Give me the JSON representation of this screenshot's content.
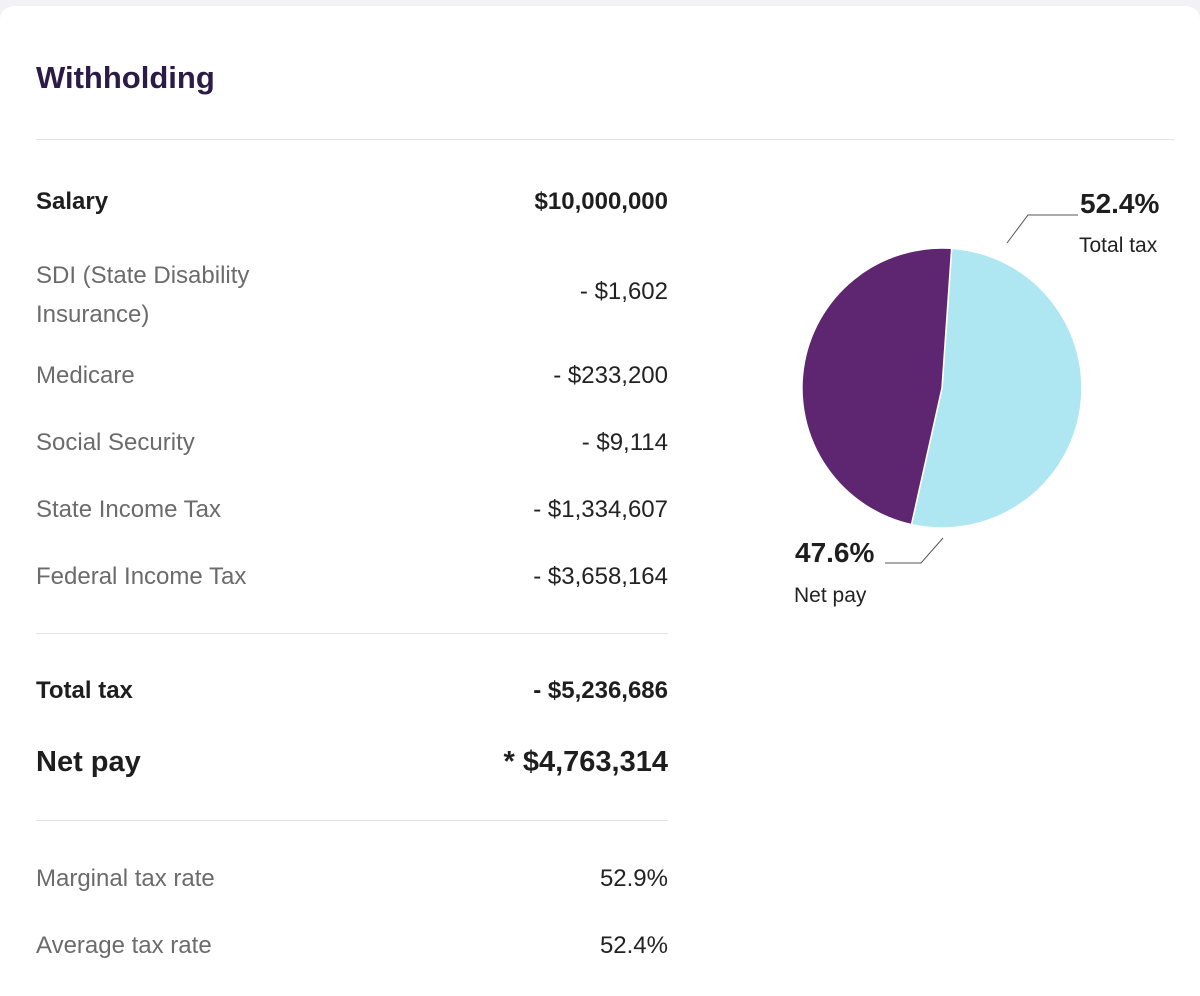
{
  "title": "Withholding",
  "rows": [
    {
      "label": "Salary",
      "value": "$10,000,000"
    },
    {
      "label": "SDI (State Disability Insurance)",
      "label_line1": "SDI (State Disability",
      "label_line2": "Insurance)",
      "value": "- $1,602"
    },
    {
      "label": "Medicare",
      "value": "- $233,200"
    },
    {
      "label": "Social Security",
      "value": "- $9,114"
    },
    {
      "label": "State Income Tax",
      "value": "- $1,334,607"
    },
    {
      "label": "Federal Income Tax",
      "value": "- $3,658,164"
    }
  ],
  "totals": {
    "total_tax_label": "Total tax",
    "total_tax_value": "- $5,236,686",
    "net_pay_label": "Net pay",
    "net_pay_value": "* $4,763,314"
  },
  "rates": {
    "marginal_label": "Marginal tax rate",
    "marginal_value": "52.9%",
    "average_label": "Average tax rate",
    "average_value": "52.4%"
  },
  "colors": {
    "title": "#2c1a47",
    "total_tax_slice": "#aee6f2",
    "net_pay_slice": "#5e2570"
  },
  "chart_data": {
    "type": "pie",
    "slices": [
      {
        "name": "Total tax",
        "percent_label": "52.4%",
        "value": 52.4,
        "color": "#aee6f2"
      },
      {
        "name": "Net pay",
        "percent_label": "47.6%",
        "value": 47.6,
        "color": "#5e2570"
      }
    ]
  }
}
